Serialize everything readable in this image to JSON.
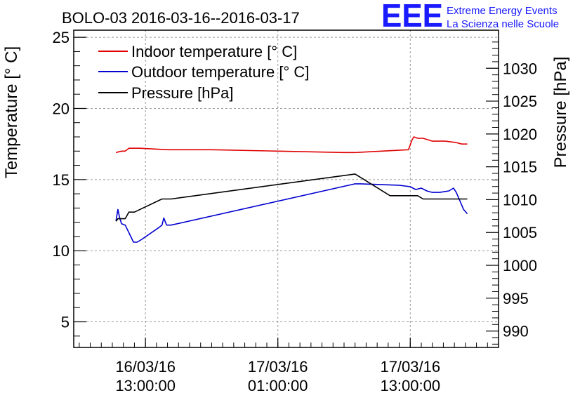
{
  "header": {
    "title": "BOLO-03 2016-03-16--2016-03-17",
    "logo_text": "EEE",
    "logo_line1": "Extreme Energy Events",
    "logo_line2": "La Scienza nelle Scuole"
  },
  "colors": {
    "indoor": "#e00000",
    "outdoor": "#0000d0",
    "pressure": "#000000",
    "logo": "#1a1aff",
    "grid": "#9a9a9a"
  },
  "chart_data": {
    "type": "line",
    "title": "BOLO-03 2016-03-16--2016-03-17",
    "xlabel": "",
    "ylabel": "Temperature [° C]",
    "y2label": "Pressure [hPa]",
    "grid": true,
    "legend_position": "top-left",
    "xlim": [
      "2016-03-16 06:30",
      "2016-03-17 21:00"
    ],
    "ylim": [
      3.2,
      25.5
    ],
    "y2lim": [
      987.5,
      1035.8
    ],
    "x_ticks": [
      {
        "x": "2016-03-16 13:00",
        "label_date": "16/03/16",
        "label_time": "13:00:00"
      },
      {
        "x": "2016-03-17 01:00",
        "label_date": "17/03/16",
        "label_time": "01:00:00"
      },
      {
        "x": "2016-03-17 13:00",
        "label_date": "17/03/16",
        "label_time": "13:00:00"
      }
    ],
    "y_ticks": [
      5,
      10,
      15,
      20,
      25
    ],
    "y_tick_labels": [
      "5",
      "10",
      "15",
      "20",
      "25"
    ],
    "y2_ticks": [
      990,
      995,
      1000,
      1005,
      1010,
      1015,
      1020,
      1025,
      1030
    ],
    "y2_tick_labels": [
      "990",
      "995",
      "1000",
      "1005",
      "1010",
      "1015",
      "1020",
      "1025",
      "1030"
    ],
    "series": [
      {
        "name": "Indoor temperature [° C]",
        "axis": "left",
        "color": "#e00000",
        "points": [
          [
            "2016-03-16 10:20",
            16.9
          ],
          [
            "2016-03-16 10:50",
            17.0
          ],
          [
            "2016-03-16 11:10",
            17.0
          ],
          [
            "2016-03-16 11:30",
            17.2
          ],
          [
            "2016-03-16 12:30",
            17.2
          ],
          [
            "2016-03-16 15:00",
            17.1
          ],
          [
            "2016-03-16 19:00",
            17.1
          ],
          [
            "2016-03-17 01:00",
            17.0
          ],
          [
            "2016-03-17 07:00",
            16.9
          ],
          [
            "2016-03-17 08:00",
            16.9
          ],
          [
            "2016-03-17 12:50",
            17.1
          ],
          [
            "2016-03-17 13:10",
            17.8
          ],
          [
            "2016-03-17 13:20",
            18.0
          ],
          [
            "2016-03-17 13:40",
            17.9
          ],
          [
            "2016-03-17 14:10",
            17.9
          ],
          [
            "2016-03-17 15:00",
            17.7
          ],
          [
            "2016-03-17 16:10",
            17.7
          ],
          [
            "2016-03-17 17:10",
            17.6
          ],
          [
            "2016-03-17 17:40",
            17.5
          ],
          [
            "2016-03-17 18:10",
            17.5
          ]
        ]
      },
      {
        "name": "Outdoor temperature [° C]",
        "axis": "left",
        "color": "#0000d0",
        "points": [
          [
            "2016-03-16 10:20",
            12.1
          ],
          [
            "2016-03-16 10:30",
            12.9
          ],
          [
            "2016-03-16 10:40",
            12.3
          ],
          [
            "2016-03-16 10:50",
            11.9
          ],
          [
            "2016-03-16 11:10",
            11.8
          ],
          [
            "2016-03-16 11:40",
            11.0
          ],
          [
            "2016-03-16 11:55",
            10.6
          ],
          [
            "2016-03-16 12:15",
            10.6
          ],
          [
            "2016-03-16 12:40",
            10.8
          ],
          [
            "2016-03-16 14:10",
            11.6
          ],
          [
            "2016-03-16 14:30",
            11.8
          ],
          [
            "2016-03-16 14:40",
            12.3
          ],
          [
            "2016-03-16 14:55",
            11.8
          ],
          [
            "2016-03-16 15:20",
            11.8
          ],
          [
            "2016-03-17 08:00",
            14.7
          ],
          [
            "2016-03-17 08:30",
            14.7
          ],
          [
            "2016-03-17 12:00",
            14.6
          ],
          [
            "2016-03-17 13:00",
            14.5
          ],
          [
            "2016-03-17 13:30",
            14.3
          ],
          [
            "2016-03-17 14:00",
            14.4
          ],
          [
            "2016-03-17 14:30",
            14.2
          ],
          [
            "2016-03-17 15:00",
            14.1
          ],
          [
            "2016-03-17 15:40",
            14.1
          ],
          [
            "2016-03-17 16:30",
            14.2
          ],
          [
            "2016-03-17 16:55",
            14.4
          ],
          [
            "2016-03-17 17:10",
            14.1
          ],
          [
            "2016-03-17 17:30",
            13.5
          ],
          [
            "2016-03-17 17:50",
            12.9
          ],
          [
            "2016-03-17 18:10",
            12.6
          ]
        ]
      },
      {
        "name": "Pressure [hPa]",
        "axis": "right",
        "color": "#000000",
        "points": [
          [
            "2016-03-16 10:20",
            1006.7
          ],
          [
            "2016-03-16 10:30",
            1007.1
          ],
          [
            "2016-03-16 10:50",
            1007.1
          ],
          [
            "2016-03-16 11:10",
            1007.1
          ],
          [
            "2016-03-16 11:30",
            1008.1
          ],
          [
            "2016-03-16 12:00",
            1008.1
          ],
          [
            "2016-03-16 14:30",
            1010.1
          ],
          [
            "2016-03-16 15:20",
            1010.1
          ],
          [
            "2016-03-17 08:00",
            1013.9
          ],
          [
            "2016-03-17 11:10",
            1010.6
          ],
          [
            "2016-03-17 13:40",
            1010.6
          ],
          [
            "2016-03-17 14:10",
            1010.1
          ],
          [
            "2016-03-17 15:00",
            1010.1
          ],
          [
            "2016-03-17 16:30",
            1010.1
          ],
          [
            "2016-03-17 18:10",
            1010.1
          ]
        ]
      }
    ]
  }
}
